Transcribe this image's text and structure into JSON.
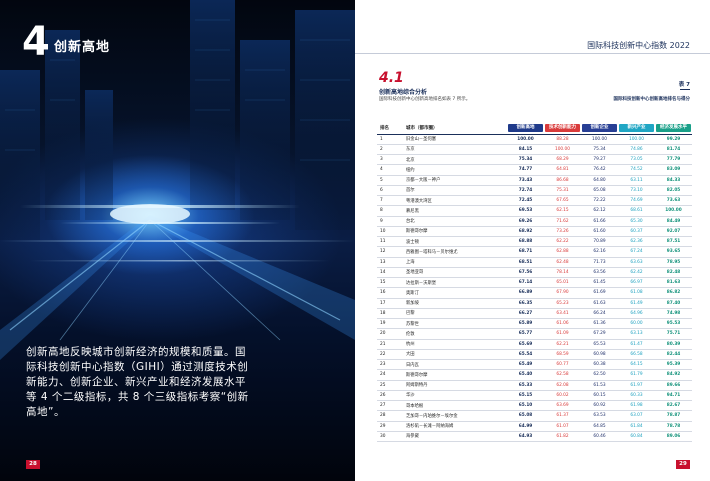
{
  "left": {
    "chapter_number": "4",
    "chapter_title": "创新高地",
    "intro": "创新高地反映城市创新经济的规模和质量。国际科技创新中心指数（GIHI）通过测度技术创新能力、创新企业、新兴产业和经济发展水平等 4 个二级指标，共 8 个三级指标考察“创新高地”。",
    "page_number": "28"
  },
  "right": {
    "report_title": "国际科技创新中心指数 2022",
    "section_number": "4.1",
    "section_title": "创新高地综合分析",
    "section_desc": "国际科技创新中心创新高地排名如表 7 所示。",
    "table_label": "表 7",
    "table_caption": "国际科技创新中心创新高地排名与得分",
    "page_number": "29",
    "columns": {
      "rank": "排名",
      "city": "城市（都市圈）",
      "score": "创新高地",
      "tech": "技术创新能力",
      "ent": "创新企业",
      "ind": "新兴产业",
      "eco": "经济发展水平"
    },
    "rows": [
      {
        "rank": "1",
        "city": "旧金山－圣何塞",
        "score": "100.00",
        "tech": "88.28",
        "ent": "100.00",
        "ind": "100.00",
        "eco": "99.29"
      },
      {
        "rank": "2",
        "city": "东京",
        "score": "84.15",
        "tech": "100.00",
        "ent": "75.34",
        "ind": "74.86",
        "eco": "81.74"
      },
      {
        "rank": "3",
        "city": "北京",
        "score": "75.34",
        "tech": "68.29",
        "ent": "79.27",
        "ind": "73.05",
        "eco": "77.79"
      },
      {
        "rank": "4",
        "city": "纽约",
        "score": "74.77",
        "tech": "64.81",
        "ent": "76.42",
        "ind": "74.52",
        "eco": "83.09"
      },
      {
        "rank": "5",
        "city": "京都－大阪－神户",
        "score": "73.43",
        "tech": "86.68",
        "ent": "64.80",
        "ind": "63.11",
        "eco": "84.33"
      },
      {
        "rank": "6",
        "city": "首尔",
        "score": "72.74",
        "tech": "75.31",
        "ent": "65.08",
        "ind": "73.10",
        "eco": "82.05"
      },
      {
        "rank": "7",
        "city": "粤港澳大湾区",
        "score": "72.45",
        "tech": "67.65",
        "ent": "72.22",
        "ind": "74.69",
        "eco": "73.63"
      },
      {
        "rank": "8",
        "city": "慕尼黑",
        "score": "69.53",
        "tech": "62.15",
        "ent": "62.12",
        "ind": "68.61",
        "eco": "100.00"
      },
      {
        "rank": "9",
        "city": "台北",
        "score": "69.26",
        "tech": "71.62",
        "ent": "61.66",
        "ind": "65.30",
        "eco": "84.49"
      },
      {
        "rank": "10",
        "city": "斯德哥尔摩",
        "score": "68.92",
        "tech": "73.26",
        "ent": "61.60",
        "ind": "60.37",
        "eco": "92.07"
      },
      {
        "rank": "11",
        "city": "波士顿",
        "score": "68.88",
        "tech": "62.22",
        "ent": "70.89",
        "ind": "62.36",
        "eco": "87.51"
      },
      {
        "rank": "12",
        "city": "西雅图－塔科马－贝尔维尤",
        "score": "68.71",
        "tech": "62.88",
        "ent": "62.16",
        "ind": "67.24",
        "eco": "93.65"
      },
      {
        "rank": "13",
        "city": "上海",
        "score": "68.51",
        "tech": "62.48",
        "ent": "71.73",
        "ind": "63.63",
        "eco": "78.95"
      },
      {
        "rank": "14",
        "city": "圣地亚哥",
        "score": "67.56",
        "tech": "78.14",
        "ent": "63.56",
        "ind": "62.42",
        "eco": "82.48"
      },
      {
        "rank": "15",
        "city": "达拉斯－沃斯堡",
        "score": "67.14",
        "tech": "65.01",
        "ent": "61.45",
        "ind": "66.97",
        "eco": "81.63"
      },
      {
        "rank": "16",
        "city": "奥斯汀",
        "score": "66.89",
        "tech": "67.90",
        "ent": "61.69",
        "ind": "61.08",
        "eco": "86.82"
      },
      {
        "rank": "17",
        "city": "新加坡",
        "score": "66.35",
        "tech": "65.23",
        "ent": "61.63",
        "ind": "61.49",
        "eco": "87.40"
      },
      {
        "rank": "18",
        "city": "巴黎",
        "score": "66.27",
        "tech": "63.41",
        "ent": "66.24",
        "ind": "64.96",
        "eco": "74.98"
      },
      {
        "rank": "19",
        "city": "苏黎世",
        "score": "65.89",
        "tech": "61.06",
        "ent": "61.36",
        "ind": "60.00",
        "eco": "95.53"
      },
      {
        "rank": "20",
        "city": "伦敦",
        "score": "65.77",
        "tech": "61.09",
        "ent": "67.29",
        "ind": "63.13",
        "eco": "75.71"
      },
      {
        "rank": "21",
        "city": "杭州",
        "score": "65.69",
        "tech": "62.21",
        "ent": "65.53",
        "ind": "61.47",
        "eco": "80.39"
      },
      {
        "rank": "22",
        "city": "大田",
        "score": "65.54",
        "tech": "68.59",
        "ent": "60.98",
        "ind": "66.58",
        "eco": "82.44"
      },
      {
        "rank": "23",
        "city": "日内瓦",
        "score": "65.49",
        "tech": "60.77",
        "ent": "60.38",
        "ind": "64.15",
        "eco": "95.39"
      },
      {
        "rank": "24",
        "city": "斯德哥尔摩",
        "score": "65.40",
        "tech": "62.58",
        "ent": "62.50",
        "ind": "61.79",
        "eco": "84.92"
      },
      {
        "rank": "25",
        "city": "阿姆斯特丹",
        "score": "65.33",
        "tech": "62.08",
        "ent": "61.53",
        "ind": "61.97",
        "eco": "89.66"
      },
      {
        "rank": "26",
        "city": "华沙",
        "score": "65.15",
        "tech": "60.02",
        "ent": "60.15",
        "ind": "60.33",
        "eco": "94.71"
      },
      {
        "rank": "27",
        "city": "哥本哈根",
        "score": "65.10",
        "tech": "63.69",
        "ent": "60.92",
        "ind": "61.98",
        "eco": "82.67"
      },
      {
        "rank": "28",
        "city": "芝加哥－内珀维尔－埃尔金",
        "score": "65.08",
        "tech": "61.37",
        "ent": "63.53",
        "ind": "63.07",
        "eco": "78.87"
      },
      {
        "rank": "29",
        "city": "洛杉矶－长滩－阿纳海姆",
        "score": "64.99",
        "tech": "61.07",
        "ent": "64.85",
        "ind": "61.84",
        "eco": "78.78"
      },
      {
        "rank": "30",
        "city": "海参崴",
        "score": "64.93",
        "tech": "61.82",
        "ent": "60.46",
        "ind": "60.84",
        "eco": "89.06"
      }
    ]
  }
}
